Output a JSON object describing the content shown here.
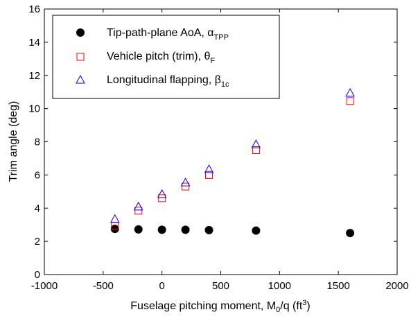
{
  "chart_data": {
    "type": "scatter",
    "xlabel_main": "Fuselage pitching moment, M",
    "xlabel_sub": "0",
    "xlabel_mid": "/q (ft",
    "xlabel_sup": "3",
    "xlabel_end": ")",
    "ylabel": "Trim angle (deg)",
    "xlim": [
      -1000,
      2000
    ],
    "ylim": [
      0,
      16
    ],
    "xticks": [
      -1000,
      -500,
      0,
      500,
      1000,
      1500,
      2000
    ],
    "yticks": [
      0,
      2,
      4,
      6,
      8,
      10,
      12,
      14,
      16
    ],
    "grid": false,
    "legend_position": "top-left",
    "series": [
      {
        "name_main": "Tip-path-plane AoA, ",
        "name_symbol": "α",
        "name_sub": "TPP",
        "marker": "filled-circle",
        "color": "#000000",
        "points": [
          {
            "x": -400,
            "y": 2.75
          },
          {
            "x": -200,
            "y": 2.72
          },
          {
            "x": 0,
            "y": 2.7
          },
          {
            "x": 200,
            "y": 2.7
          },
          {
            "x": 400,
            "y": 2.68
          },
          {
            "x": 800,
            "y": 2.65
          },
          {
            "x": 1600,
            "y": 2.5
          }
        ]
      },
      {
        "name_main": "Vehicle pitch (trim), ",
        "name_symbol": "θ",
        "name_sub": "F",
        "marker": "square",
        "color": "#ff0000",
        "points": [
          {
            "x": -400,
            "y": 2.95
          },
          {
            "x": -200,
            "y": 3.85
          },
          {
            "x": 0,
            "y": 4.6
          },
          {
            "x": 200,
            "y": 5.3
          },
          {
            "x": 400,
            "y": 6.0
          },
          {
            "x": 800,
            "y": 7.5
          },
          {
            "x": 1600,
            "y": 10.45
          }
        ]
      },
      {
        "name_main": "Longitudinal flapping, ",
        "name_symbol": "β",
        "name_sub": "1c",
        "marker": "triangle",
        "color": "#0000ff",
        "points": [
          {
            "x": -400,
            "y": 3.35
          },
          {
            "x": -200,
            "y": 4.1
          },
          {
            "x": 0,
            "y": 4.85
          },
          {
            "x": 200,
            "y": 5.55
          },
          {
            "x": 400,
            "y": 6.35
          },
          {
            "x": 800,
            "y": 7.85
          },
          {
            "x": 1600,
            "y": 10.95
          }
        ]
      }
    ]
  }
}
